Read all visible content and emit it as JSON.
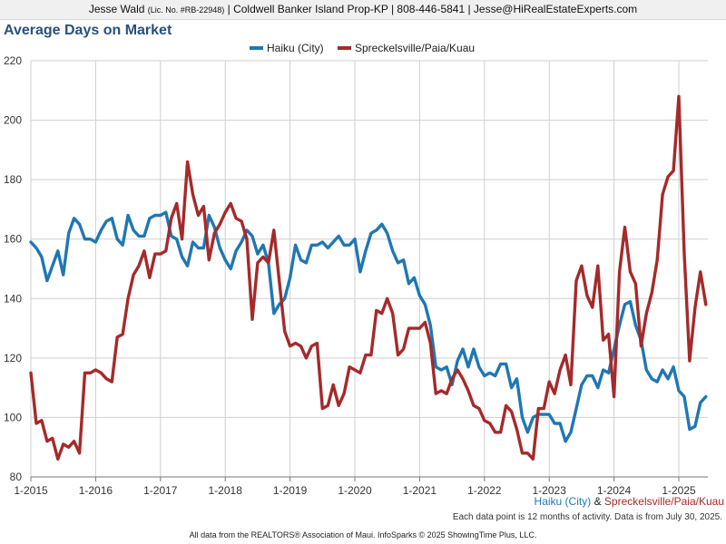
{
  "header": {
    "agent": "Jesse Wald",
    "license": "(Lic. No. #RB-22948)",
    "rest": "| Coldwell Banker Island Prop-KP | 808-446-5841 | Jesse@HiRealEstateExperts.com"
  },
  "footer": {
    "legend_a": "Haiku (City)",
    "amp": "&",
    "legend_b": "Spreckelsville/Paia/Kuau",
    "note": "Each data point is 12 months of activity. Data is from July 30, 2025.",
    "credit": "All data from the REALTORS® Association of Maui. InfoSparks © 2025 ShowingTime Plus, LLC."
  },
  "chart_data": {
    "type": "line",
    "title": "Average Days on Market",
    "xlabel": "",
    "ylabel": "",
    "ylim": [
      80,
      220
    ],
    "yticks": [
      80,
      100,
      120,
      140,
      160,
      180,
      200,
      220
    ],
    "x_start": "2015-01",
    "x_end": "2025-06",
    "x_tick_labels": [
      "1-2015",
      "1-2016",
      "1-2017",
      "1-2018",
      "1-2019",
      "1-2020",
      "1-2021",
      "1-2022",
      "1-2023",
      "1-2024",
      "1-2025"
    ],
    "grid": true,
    "legend_position": "top-center",
    "series": [
      {
        "name": "Haiku (City)",
        "color": "#1f77b4",
        "values": [
          159,
          157,
          154,
          146,
          151,
          156,
          148,
          162,
          167,
          165,
          160,
          160,
          159,
          163,
          166,
          167,
          160,
          158,
          168,
          163,
          161,
          161,
          167,
          168,
          168,
          169,
          161,
          160,
          154,
          151,
          159,
          157,
          157,
          168,
          164,
          157,
          153,
          150,
          156,
          159,
          163,
          161,
          155,
          158,
          152,
          135,
          138,
          140,
          147,
          158,
          153,
          152,
          158,
          158,
          159,
          157,
          159,
          161,
          158,
          158,
          160,
          149,
          156,
          162,
          163,
          165,
          162,
          156,
          152,
          153,
          145,
          147,
          141,
          138,
          131,
          117,
          116,
          117,
          111,
          119,
          123,
          117,
          123,
          117,
          114,
          115,
          114,
          118,
          118,
          110,
          113,
          100,
          95,
          100,
          101,
          101,
          101,
          98,
          98,
          92,
          95,
          103,
          111,
          114,
          114,
          110,
          116,
          115,
          123,
          131,
          138,
          139,
          131,
          126,
          116,
          113,
          112,
          116,
          113,
          117,
          109,
          107,
          96,
          97,
          105,
          107
        ]
      },
      {
        "name": "Spreckelsville/Paia/Kuau",
        "color": "#a52a2a",
        "values": [
          115,
          98,
          99,
          92,
          93,
          86,
          91,
          90,
          92,
          88,
          115,
          115,
          116,
          115,
          113,
          112,
          127,
          128,
          140,
          148,
          151,
          156,
          147,
          155,
          155,
          156,
          167,
          172,
          160,
          186,
          175,
          168,
          171,
          153,
          162,
          165,
          169,
          172,
          167,
          166,
          160,
          133,
          152,
          154,
          152,
          163,
          146,
          129,
          124,
          125,
          124,
          120,
          124,
          125,
          103,
          104,
          111,
          104,
          108,
          117,
          116,
          115,
          121,
          121,
          136,
          135,
          140,
          135,
          121,
          123,
          130,
          130,
          130,
          132,
          125,
          108,
          109,
          108,
          113,
          116,
          113,
          109,
          104,
          103,
          99,
          98,
          95,
          95,
          104,
          102,
          96,
          88,
          88,
          86,
          103,
          103,
          112,
          108,
          116,
          121,
          111,
          146,
          151,
          141,
          137,
          151,
          126,
          128,
          107,
          149,
          164,
          149,
          145,
          124,
          135,
          142,
          153,
          175,
          181,
          183,
          208,
          155,
          119,
          137,
          149,
          138
        ]
      }
    ]
  }
}
